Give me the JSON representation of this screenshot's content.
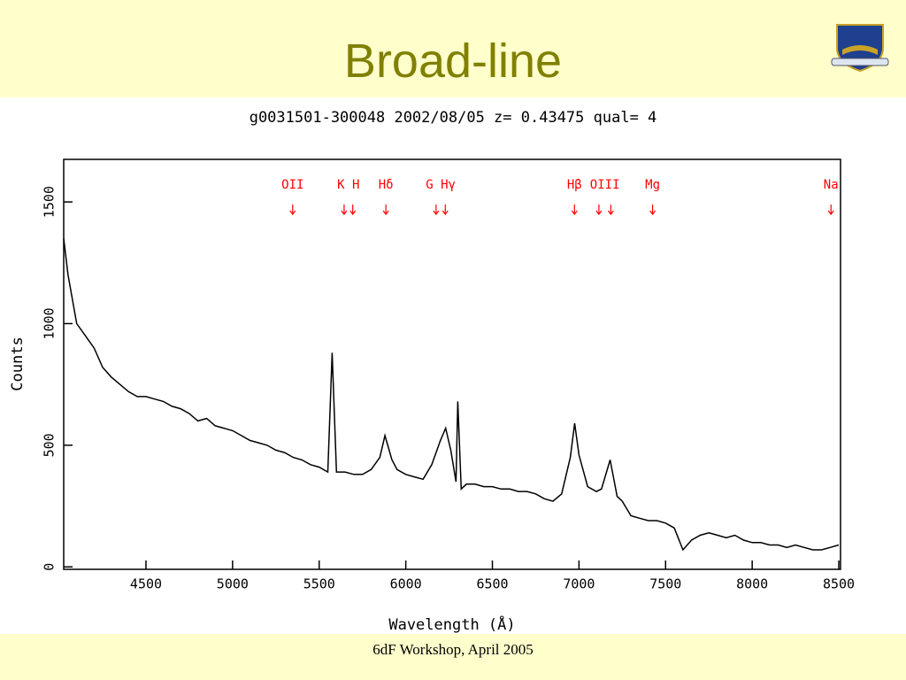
{
  "slide_title": "Broad-line",
  "footer": "6dF Workshop, April 2005",
  "chart_data": {
    "type": "line",
    "title": "g0031501-300048 2002/08/05 z= 0.43475 qual= 4",
    "x_label": "Wavelength (Å)",
    "y_label": "Counts",
    "color": "#000000",
    "xlim": [
      4025,
      8510
    ],
    "ylim": [
      -10,
      1675
    ],
    "xticks": [
      4500,
      5000,
      5500,
      6000,
      6500,
      7000,
      7500,
      8000,
      8500
    ],
    "yticks": [
      0,
      500,
      1000,
      1500
    ],
    "lines_color": "#ff0000",
    "lines": [
      {
        "label": "OII",
        "x": [
          5347
        ]
      },
      {
        "label": "K H",
        "x": [
          5644,
          5694
        ]
      },
      {
        "label": "Hδ",
        "x": [
          5885
        ]
      },
      {
        "label": "G Hγ",
        "x": [
          6175,
          6228
        ]
      },
      {
        "label": "Hβ",
        "x": [
          6974
        ]
      },
      {
        "label": "OIII",
        "x": [
          7115,
          7184
        ]
      },
      {
        "label": "Mg",
        "x": [
          7425
        ]
      },
      {
        "label": "Na",
        "x": [
          8455
        ]
      }
    ],
    "x": [
      4025,
      4050,
      4100,
      4150,
      4200,
      4250,
      4300,
      4350,
      4400,
      4450,
      4500,
      4550,
      4600,
      4650,
      4700,
      4750,
      4800,
      4850,
      4900,
      4950,
      5000,
      5050,
      5100,
      5150,
      5200,
      5250,
      5300,
      5350,
      5400,
      5450,
      5500,
      5550,
      5575,
      5600,
      5650,
      5700,
      5750,
      5800,
      5850,
      5880,
      5920,
      5950,
      6000,
      6050,
      6100,
      6150,
      6200,
      6230,
      6260,
      6290,
      6300,
      6320,
      6350,
      6400,
      6450,
      6500,
      6550,
      6600,
      6650,
      6700,
      6750,
      6800,
      6850,
      6900,
      6950,
      6975,
      7000,
      7050,
      7100,
      7130,
      7180,
      7220,
      7250,
      7300,
      7350,
      7400,
      7450,
      7500,
      7550,
      7600,
      7650,
      7700,
      7750,
      7800,
      7850,
      7900,
      7950,
      8000,
      8050,
      8100,
      8150,
      8200,
      8250,
      8300,
      8350,
      8400,
      8450,
      8500
    ],
    "values": [
      1350,
      1200,
      1000,
      950,
      900,
      820,
      780,
      750,
      720,
      700,
      700,
      690,
      680,
      660,
      650,
      630,
      600,
      610,
      580,
      570,
      560,
      540,
      520,
      510,
      500,
      480,
      470,
      450,
      440,
      420,
      410,
      390,
      880,
      390,
      390,
      380,
      380,
      400,
      450,
      540,
      440,
      400,
      380,
      370,
      360,
      420,
      520,
      570,
      480,
      350,
      680,
      320,
      340,
      340,
      330,
      330,
      320,
      320,
      310,
      310,
      300,
      280,
      270,
      300,
      450,
      590,
      460,
      330,
      310,
      320,
      440,
      290,
      270,
      210,
      200,
      190,
      190,
      180,
      160,
      70,
      110,
      130,
      140,
      130,
      120,
      130,
      110,
      100,
      100,
      90,
      90,
      80,
      90,
      80,
      70,
      70,
      80,
      90
    ]
  }
}
